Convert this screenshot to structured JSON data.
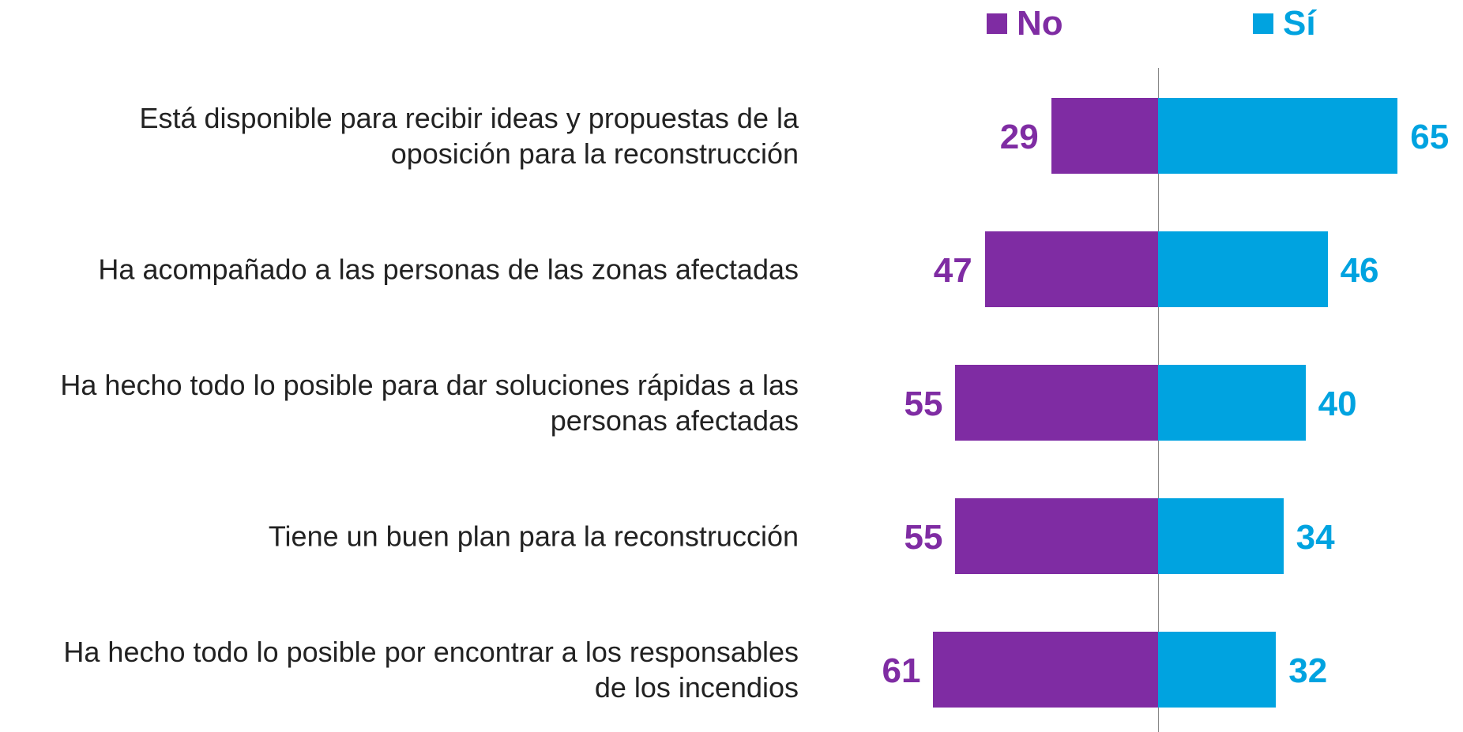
{
  "chart_data": {
    "type": "diverging-bar",
    "categories": [
      "Está disponible para recibir ideas y propuestas de la oposición para la reconstrucción",
      "Ha acompañado a las personas de las zonas afectadas",
      "Ha hecho todo lo posible para dar soluciones rápidas a las personas afectadas",
      "Tiene un buen plan para la reconstrucción",
      "Ha hecho todo lo posible por encontrar a los responsables de los incendios"
    ],
    "series": [
      {
        "name": "No",
        "color": "#7f2ca3",
        "values": [
          29,
          47,
          55,
          55,
          61
        ]
      },
      {
        "name": "Sí",
        "color": "#00a3e0",
        "values": [
          65,
          46,
          40,
          34,
          32
        ]
      }
    ],
    "legend": "top-right"
  }
}
